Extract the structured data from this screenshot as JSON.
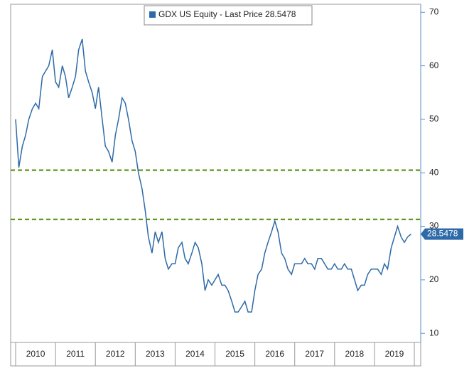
{
  "chart_data": {
    "type": "line",
    "series": [
      {
        "name": "GDX US Equity - Last Price 28.5478",
        "color": "#2e6aa8",
        "x": [
          2010.0,
          2010.08,
          2010.17,
          2010.25,
          2010.33,
          2010.42,
          2010.5,
          2010.58,
          2010.67,
          2010.75,
          2010.83,
          2010.92,
          2011.0,
          2011.08,
          2011.17,
          2011.25,
          2011.33,
          2011.42,
          2011.5,
          2011.58,
          2011.67,
          2011.75,
          2011.83,
          2011.92,
          2012.0,
          2012.08,
          2012.17,
          2012.25,
          2012.33,
          2012.42,
          2012.5,
          2012.58,
          2012.67,
          2012.75,
          2012.83,
          2012.92,
          2013.0,
          2013.08,
          2013.17,
          2013.25,
          2013.33,
          2013.42,
          2013.5,
          2013.58,
          2013.67,
          2013.75,
          2013.83,
          2013.92,
          2014.0,
          2014.08,
          2014.17,
          2014.25,
          2014.33,
          2014.42,
          2014.5,
          2014.58,
          2014.67,
          2014.75,
          2014.83,
          2014.92,
          2015.0,
          2015.08,
          2015.17,
          2015.25,
          2015.33,
          2015.42,
          2015.5,
          2015.58,
          2015.67,
          2015.75,
          2015.83,
          2015.92,
          2016.0,
          2016.08,
          2016.17,
          2016.25,
          2016.33,
          2016.42,
          2016.5,
          2016.58,
          2016.67,
          2016.75,
          2016.83,
          2016.92,
          2017.0,
          2017.08,
          2017.17,
          2017.25,
          2017.33,
          2017.42,
          2017.5,
          2017.58,
          2017.67,
          2017.75,
          2017.83,
          2017.92,
          2018.0,
          2018.08,
          2018.17,
          2018.25,
          2018.33,
          2018.42,
          2018.5,
          2018.58,
          2018.67,
          2018.75,
          2018.83,
          2018.92,
          2019.0,
          2019.08,
          2019.17,
          2019.25,
          2019.33,
          2019.42,
          2019.5,
          2019.58,
          2019.67,
          2019.75,
          2019.83,
          2019.92
        ],
        "values": [
          50,
          41,
          45,
          47,
          50,
          52,
          53,
          52,
          58,
          59,
          60,
          63,
          57,
          56,
          60,
          58,
          54,
          56,
          58,
          63,
          65,
          59,
          57,
          55,
          52,
          56,
          50,
          45,
          44,
          42,
          47,
          50,
          54,
          53,
          50,
          46,
          44,
          40,
          37,
          33,
          28,
          25,
          29,
          27,
          29,
          24,
          22,
          23,
          23,
          26,
          27,
          24,
          23,
          25,
          27,
          26,
          23,
          18,
          20,
          19,
          20,
          21,
          19,
          19,
          18,
          16,
          14,
          14,
          15,
          16,
          14,
          14,
          18,
          21,
          22,
          25,
          27,
          29,
          31,
          29,
          25,
          24,
          22,
          21,
          23,
          23,
          23,
          24,
          23,
          23,
          22,
          24,
          24,
          23,
          22,
          22,
          23,
          22,
          22,
          23,
          22,
          22,
          20,
          18,
          19,
          19,
          21,
          22,
          22,
          22,
          21,
          23,
          22,
          26,
          28,
          30,
          28,
          27,
          28,
          28.5478
        ]
      }
    ],
    "xlim": [
      2009.875,
      2020.16
    ],
    "xticks": [
      {
        "value": 2010.5,
        "label": "2010"
      },
      {
        "value": 2011.5,
        "label": "2011"
      },
      {
        "value": 2012.5,
        "label": "2012"
      },
      {
        "value": 2013.5,
        "label": "2013"
      },
      {
        "value": 2014.5,
        "label": "2014"
      },
      {
        "value": 2015.5,
        "label": "2015"
      },
      {
        "value": 2016.5,
        "label": "2016"
      },
      {
        "value": 2017.5,
        "label": "2017"
      },
      {
        "value": 2018.5,
        "label": "2018"
      },
      {
        "value": 2019.5,
        "label": "2019"
      }
    ],
    "ylim": [
      8.3,
      71.5
    ],
    "yticks": [
      10,
      20,
      30,
      40,
      50,
      60,
      70
    ],
    "reference_lines": {
      "values": [
        40.5,
        31.3
      ],
      "color": "#4d8a00"
    },
    "last_price": {
      "value": 28.5478,
      "label": "28.5478"
    }
  }
}
